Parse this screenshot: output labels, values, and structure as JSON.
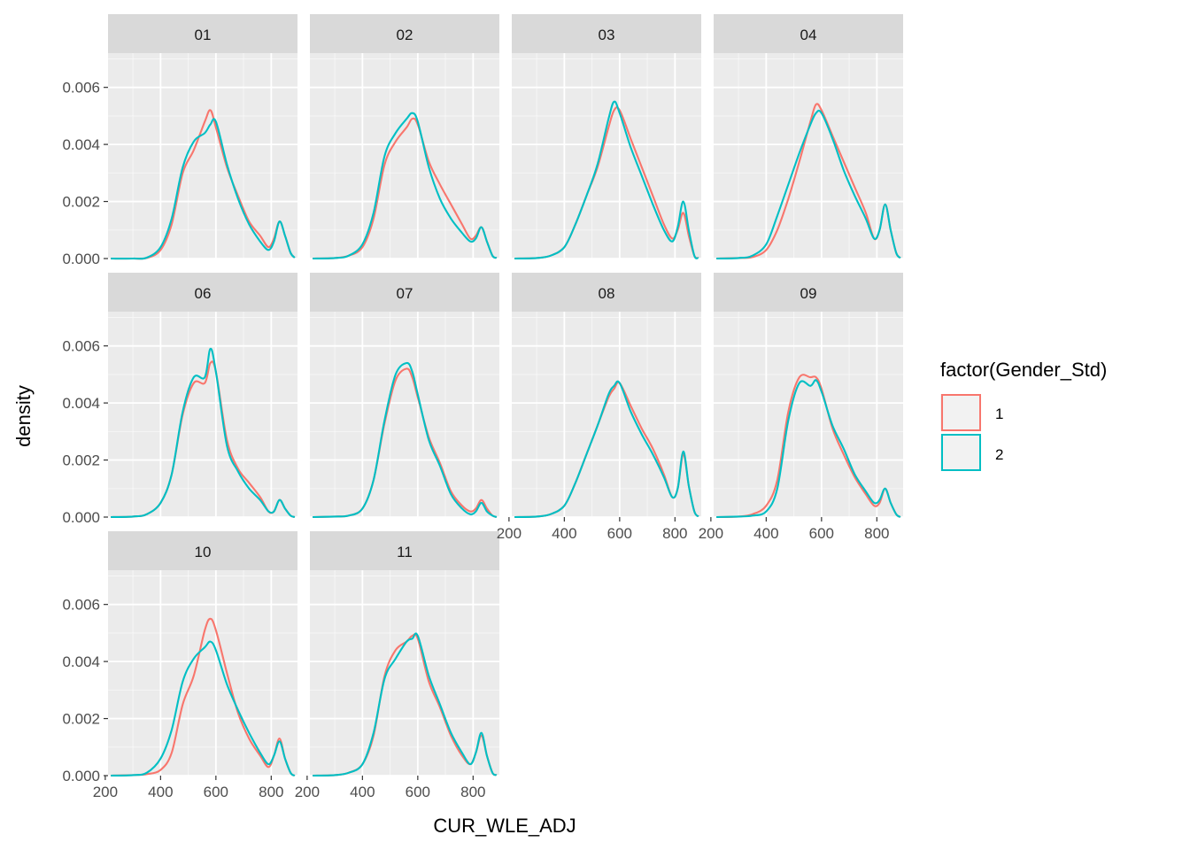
{
  "colors": {
    "panel_background": "#EBEBEB",
    "grid_major": "#FFFFFF",
    "strip_background": "#D9D9D9",
    "series_1": "#F8766D",
    "series_2": "#00BFC4"
  },
  "chart_data": {
    "type": "line",
    "facet_layout": "wrap, 4 columns",
    "xlabel": "CUR_WLE_ADJ",
    "ylabel": "density",
    "xlim": [
      210,
      895
    ],
    "ylim": [
      0,
      0.0072
    ],
    "x_ticks": [
      200,
      400,
      600,
      800
    ],
    "x_tick_labels": [
      "200",
      "400",
      "600",
      "800"
    ],
    "y_ticks": [
      0,
      0.002,
      0.004,
      0.006
    ],
    "y_tick_labels": [
      "0.000",
      "0.002",
      "0.004",
      "0.006"
    ],
    "grid": true,
    "legend": {
      "title": "factor(Gender_Std)",
      "position": "right",
      "entries": [
        "1",
        "2"
      ]
    },
    "x": [
      220,
      300,
      350,
      400,
      440,
      480,
      520,
      560,
      580,
      600,
      640,
      680,
      720,
      760,
      790,
      810,
      830,
      850,
      870,
      885
    ],
    "panels": [
      {
        "label": "01",
        "series": [
          {
            "name": "1",
            "values": [
              0,
              0,
              2e-05,
              0.0003,
              0.0012,
              0.003,
              0.0038,
              0.0048,
              0.0052,
              0.0046,
              0.0032,
              0.0022,
              0.0013,
              0.0008,
              0.0004,
              0.0007,
              0.0013,
              0.0008,
              0.0002,
              3e-05
            ]
          },
          {
            "name": "2",
            "values": [
              0,
              0,
              3e-05,
              0.0004,
              0.0014,
              0.0032,
              0.0041,
              0.0044,
              0.0047,
              0.0048,
              0.0033,
              0.0021,
              0.0012,
              0.0006,
              0.0003,
              0.0006,
              0.0013,
              0.0008,
              0.0002,
              3e-05
            ]
          }
        ]
      },
      {
        "label": "02",
        "series": [
          {
            "name": "1",
            "values": [
              0,
              2e-05,
              0.0001,
              0.0004,
              0.0014,
              0.0033,
              0.0041,
              0.0046,
              0.0049,
              0.0047,
              0.0034,
              0.0026,
              0.0019,
              0.0012,
              0.0007,
              0.0008,
              0.0011,
              0.0006,
              0.0001,
              2e-05
            ]
          },
          {
            "name": "2",
            "values": [
              0,
              2e-05,
              0.0001,
              0.0005,
              0.0016,
              0.0036,
              0.0044,
              0.0049,
              0.0051,
              0.0048,
              0.0032,
              0.0021,
              0.0014,
              0.0009,
              0.0006,
              0.0007,
              0.0011,
              0.0006,
              0.0001,
              2e-05
            ]
          }
        ]
      },
      {
        "label": "03",
        "series": [
          {
            "name": "1",
            "values": [
              0,
              2e-05,
              0.0001,
              0.0004,
              0.0012,
              0.0022,
              0.0032,
              0.0046,
              0.0052,
              0.0052,
              0.0042,
              0.0032,
              0.0022,
              0.0012,
              0.0007,
              0.001,
              0.0016,
              0.0008,
              0.0001,
              2e-05
            ]
          },
          {
            "name": "2",
            "values": [
              0,
              2e-05,
              0.0001,
              0.0004,
              0.0012,
              0.0022,
              0.0033,
              0.0049,
              0.0055,
              0.0051,
              0.0039,
              0.0029,
              0.0019,
              0.001,
              0.0006,
              0.0011,
              0.002,
              0.001,
              0.0001,
              2e-05
            ]
          }
        ]
      },
      {
        "label": "04",
        "series": [
          {
            "name": "1",
            "values": [
              0,
              2e-05,
              5e-05,
              0.0003,
              0.001,
              0.0021,
              0.0034,
              0.0048,
              0.0054,
              0.0052,
              0.0043,
              0.0034,
              0.0025,
              0.0016,
              0.0007,
              0.001,
              0.0019,
              0.001,
              0.0002,
              2e-05
            ]
          },
          {
            "name": "2",
            "values": [
              0,
              2e-05,
              0.0001,
              0.0005,
              0.0015,
              0.0026,
              0.0037,
              0.0047,
              0.0051,
              0.0051,
              0.0042,
              0.0031,
              0.0022,
              0.0014,
              0.0007,
              0.001,
              0.0019,
              0.001,
              0.0002,
              2e-05
            ]
          }
        ]
      },
      {
        "label": "06",
        "series": [
          {
            "name": "1",
            "values": [
              0,
              2e-05,
              0.0001,
              0.0005,
              0.0015,
              0.0036,
              0.0047,
              0.0047,
              0.0054,
              0.0051,
              0.0027,
              0.0017,
              0.0012,
              0.0007,
              0.0002,
              0.0002,
              0.0006,
              0.0003,
              5e-05,
              0
            ]
          },
          {
            "name": "2",
            "values": [
              0,
              2e-05,
              0.0001,
              0.0005,
              0.0015,
              0.0037,
              0.0049,
              0.0049,
              0.0059,
              0.0051,
              0.0025,
              0.0016,
              0.001,
              0.0006,
              0.0002,
              0.0002,
              0.0006,
              0.0003,
              5e-05,
              0
            ]
          }
        ]
      },
      {
        "label": "07",
        "series": [
          {
            "name": "1",
            "values": [
              0,
              2e-05,
              5e-05,
              0.0003,
              0.0013,
              0.0033,
              0.0048,
              0.0052,
              0.0049,
              0.0042,
              0.0028,
              0.0019,
              0.0009,
              0.0004,
              0.0002,
              0.0003,
              0.0006,
              0.0003,
              5e-05,
              0
            ]
          },
          {
            "name": "2",
            "values": [
              0,
              2e-05,
              5e-05,
              0.0003,
              0.0013,
              0.0034,
              0.005,
              0.0054,
              0.0051,
              0.0043,
              0.0027,
              0.0018,
              0.0008,
              0.0003,
              0.0001,
              0.0002,
              0.0005,
              0.0002,
              5e-05,
              0
            ]
          }
        ]
      },
      {
        "label": "08",
        "series": [
          {
            "name": "1",
            "values": [
              0,
              2e-05,
              0.0001,
              0.0004,
              0.0012,
              0.0022,
              0.0032,
              0.0042,
              0.0045,
              0.0047,
              0.0039,
              0.0031,
              0.0024,
              0.0015,
              0.0007,
              0.001,
              0.0022,
              0.0011,
              0.0002,
              2e-05
            ]
          },
          {
            "name": "2",
            "values": [
              0,
              2e-05,
              0.0001,
              0.0004,
              0.0012,
              0.0022,
              0.0032,
              0.0043,
              0.0046,
              0.0047,
              0.0037,
              0.0029,
              0.0022,
              0.0014,
              0.0007,
              0.001,
              0.0023,
              0.0011,
              0.0002,
              2e-05
            ]
          }
        ]
      },
      {
        "label": "09",
        "series": [
          {
            "name": "1",
            "values": [
              0,
              2e-05,
              0.0001,
              0.0004,
              0.0013,
              0.0037,
              0.0049,
              0.0049,
              0.0049,
              0.0045,
              0.0031,
              0.0022,
              0.0014,
              0.0008,
              0.0004,
              0.0005,
              0.001,
              0.0005,
              0.0001,
              0
            ]
          },
          {
            "name": "2",
            "values": [
              0,
              2e-05,
              5e-05,
              0.0002,
              0.001,
              0.0034,
              0.0047,
              0.0046,
              0.0048,
              0.0044,
              0.0032,
              0.0024,
              0.0015,
              0.0009,
              0.0005,
              0.0006,
              0.001,
              0.0005,
              0.0001,
              0
            ]
          }
        ]
      },
      {
        "label": "10",
        "series": [
          {
            "name": "1",
            "values": [
              0,
              2e-05,
              5e-05,
              0.0002,
              0.0008,
              0.0025,
              0.0035,
              0.0051,
              0.0055,
              0.0051,
              0.0036,
              0.0022,
              0.0013,
              0.0007,
              0.0003,
              0.0007,
              0.0013,
              0.0006,
              0.0001,
              0
            ]
          },
          {
            "name": "2",
            "values": [
              0,
              2e-05,
              0.0001,
              0.0006,
              0.0016,
              0.0033,
              0.0041,
              0.0045,
              0.0047,
              0.0044,
              0.0032,
              0.0023,
              0.0015,
              0.0008,
              0.0004,
              0.0007,
              0.0012,
              0.0006,
              0.0001,
              0
            ]
          }
        ]
      },
      {
        "label": "11",
        "series": [
          {
            "name": "1",
            "values": [
              0,
              2e-05,
              0.0001,
              0.0004,
              0.0014,
              0.0035,
              0.0044,
              0.0047,
              0.0049,
              0.0048,
              0.0033,
              0.0024,
              0.0014,
              0.0007,
              0.0004,
              0.0008,
              0.0014,
              0.0007,
              0.0001,
              2e-05
            ]
          },
          {
            "name": "2",
            "values": [
              0,
              2e-05,
              0.0001,
              0.0004,
              0.0015,
              0.0034,
              0.0041,
              0.0047,
              0.0048,
              0.0049,
              0.0035,
              0.0025,
              0.0015,
              0.0008,
              0.0004,
              0.0008,
              0.0015,
              0.0007,
              0.0001,
              2e-05
            ]
          }
        ]
      }
    ]
  }
}
